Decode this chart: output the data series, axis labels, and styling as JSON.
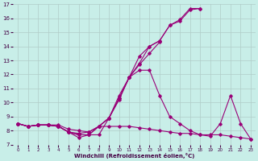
{
  "xlabel": "Windchill (Refroidissement éolien,°C)",
  "xlim": [
    -0.5,
    23.5
  ],
  "ylim": [
    7,
    17
  ],
  "yticks": [
    7,
    8,
    9,
    10,
    11,
    12,
    13,
    14,
    15,
    16,
    17
  ],
  "xticks": [
    0,
    1,
    2,
    3,
    4,
    5,
    6,
    7,
    8,
    9,
    10,
    11,
    12,
    13,
    14,
    15,
    16,
    17,
    18,
    19,
    20,
    21,
    22,
    23
  ],
  "background_color": "#c8eee8",
  "line_color": "#990077",
  "grid_color": "#b0ccc8",
  "lines": [
    {
      "x": [
        0,
        1,
        2,
        3,
        4,
        5,
        6,
        7,
        8,
        9,
        10,
        11,
        12,
        13,
        14,
        15,
        16,
        17,
        18
      ],
      "y": [
        8.5,
        8.3,
        8.4,
        8.4,
        8.3,
        7.9,
        7.5,
        7.7,
        7.7,
        8.9,
        10.5,
        11.8,
        12.8,
        14.0,
        14.4,
        15.5,
        15.8,
        16.6,
        16.7
      ]
    },
    {
      "x": [
        0,
        1,
        2,
        3,
        4,
        5,
        6,
        7,
        8,
        9,
        10,
        11,
        12,
        13,
        14,
        15,
        16,
        17,
        18
      ],
      "y": [
        8.5,
        8.3,
        8.4,
        8.4,
        8.3,
        7.9,
        7.8,
        7.9,
        8.3,
        8.9,
        10.3,
        11.8,
        13.3,
        14.0,
        14.4,
        15.5,
        15.9,
        16.7,
        16.7
      ]
    },
    {
      "x": [
        0,
        1,
        2,
        3,
        4,
        5,
        6,
        7,
        8,
        9,
        10,
        11,
        12,
        13,
        14
      ],
      "y": [
        8.5,
        8.3,
        8.4,
        8.4,
        8.4,
        8.1,
        8.0,
        7.9,
        8.3,
        8.9,
        10.2,
        11.8,
        12.7,
        13.5,
        14.3
      ]
    },
    {
      "x": [
        0,
        1,
        2,
        3,
        4,
        5,
        6,
        7,
        8,
        9,
        10,
        11,
        12,
        13,
        14,
        15,
        16,
        17,
        18,
        19,
        20,
        21,
        22,
        23
      ],
      "y": [
        8.5,
        8.3,
        8.4,
        8.4,
        8.3,
        7.9,
        7.7,
        7.7,
        8.3,
        8.9,
        10.3,
        11.8,
        12.3,
        12.3,
        10.5,
        9.0,
        8.5,
        8.0,
        7.7,
        7.6,
        8.5,
        10.5,
        8.5,
        7.4
      ]
    },
    {
      "x": [
        0,
        1,
        2,
        3,
        4,
        5,
        6,
        7,
        8,
        9,
        10,
        11,
        12,
        13,
        14,
        15,
        16,
        17,
        18,
        19,
        20,
        21,
        22,
        23
      ],
      "y": [
        8.5,
        8.3,
        8.4,
        8.4,
        8.3,
        7.9,
        7.7,
        7.7,
        8.3,
        8.3,
        8.3,
        8.3,
        8.2,
        8.1,
        8.0,
        7.9,
        7.8,
        7.8,
        7.7,
        7.7,
        7.7,
        7.6,
        7.5,
        7.4
      ]
    }
  ]
}
